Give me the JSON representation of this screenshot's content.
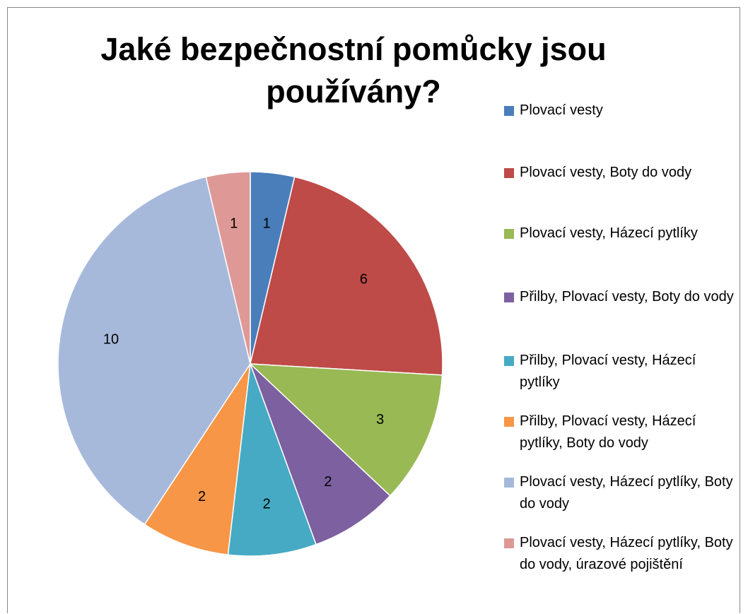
{
  "chart_data": {
    "type": "pie",
    "title": "Jaké bezpečnostní pomůcky jsou používány?",
    "legend_position": "right",
    "slices": [
      {
        "label": "Plovací vesty",
        "value": 1,
        "color": "#4A7EBB"
      },
      {
        "label": "Plovací vesty, Boty do vody",
        "value": 6,
        "color": "#BE4B48"
      },
      {
        "label": "Plovací vesty, Házecí pytlíky",
        "value": 3,
        "color": "#98B954"
      },
      {
        "label": "Přilby, Plovací vesty, Boty do vody",
        "value": 2,
        "color": "#7D60A0"
      },
      {
        "label": "Přilby, Plovací vesty, Házecí pytlíky",
        "value": 2,
        "color": "#46AAC5"
      },
      {
        "label": "Přilby, Plovací vesty, Házecí pytlíky, Boty do vody",
        "value": 2,
        "color": "#F79646"
      },
      {
        "label": "Plovací vesty, Házecí pytlíky, Boty do vody",
        "value": 10,
        "color": "#A7B9DB"
      },
      {
        "label": "Plovací vesty, Házecí pytlíky, Boty do vody, úrazové pojištění",
        "value": 1,
        "color": "#DE9996"
      }
    ]
  }
}
